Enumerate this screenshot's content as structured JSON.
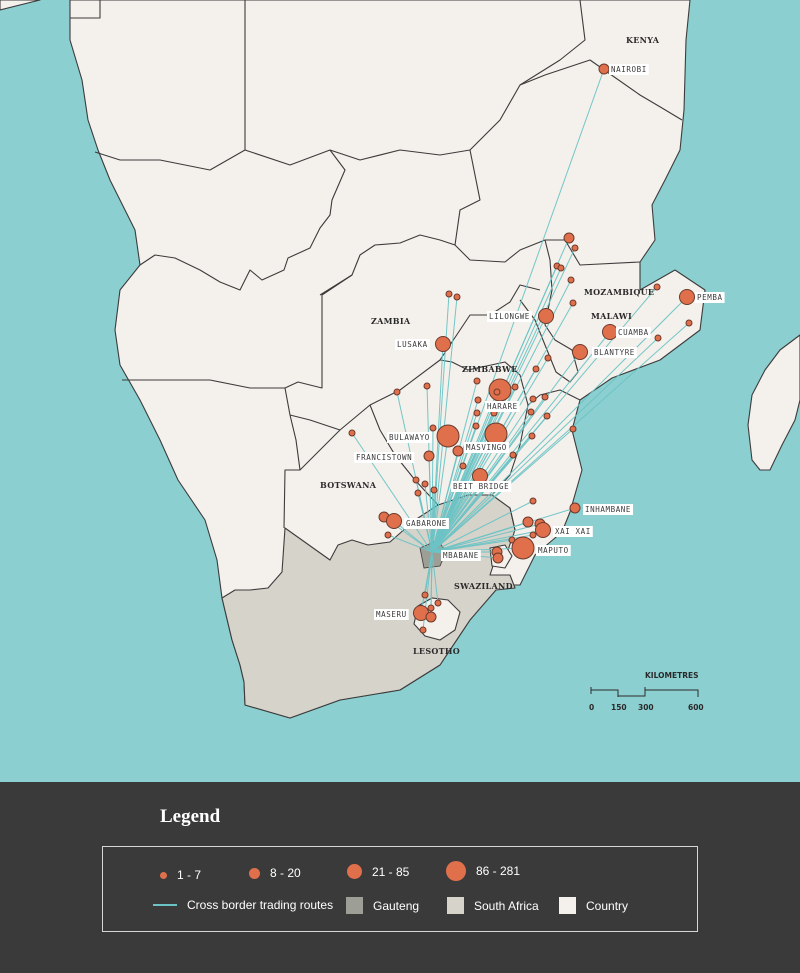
{
  "countries": [
    "KENYA",
    "ZAMBIA",
    "MALAWI",
    "MOZAMBIQUE",
    "ZIMBABWE",
    "BOTSWANA",
    "SWAZILAND",
    "LESOTHO"
  ],
  "cities": [
    "NAIROBI",
    "LILONGWE",
    "PEMBA",
    "CUAMBA",
    "BLANTYRE",
    "LUSAKA",
    "HARARE",
    "BULAWAYO",
    "MASVINGO",
    "FRANCISTOWN",
    "BEIT BRIDGE",
    "INHAMBANE",
    "GABARONE",
    "XAI XAI",
    "MBABANE",
    "MAPUTO",
    "MASERU"
  ],
  "scale": {
    "title": "KILOMETRES",
    "ticks": [
      "0",
      "150",
      "300",
      "600"
    ]
  },
  "legend": {
    "title": "Legend",
    "sizes": [
      "1 - 7",
      "8 - 20",
      "21 - 85",
      "86 - 281"
    ],
    "routes_label": "Cross border trading routes",
    "gauteng_label": "Gauteng",
    "south_africa_label": "South Africa",
    "country_label": "Country"
  },
  "colors": {
    "ocean": "#8ccfd0",
    "land": "#f4f1ec",
    "south_africa": "#d5d3ca",
    "gauteng": "#9d9e96",
    "route": "#6cc3c5",
    "marker": "#e0704c",
    "legend_bg": "#3b3a3b"
  }
}
